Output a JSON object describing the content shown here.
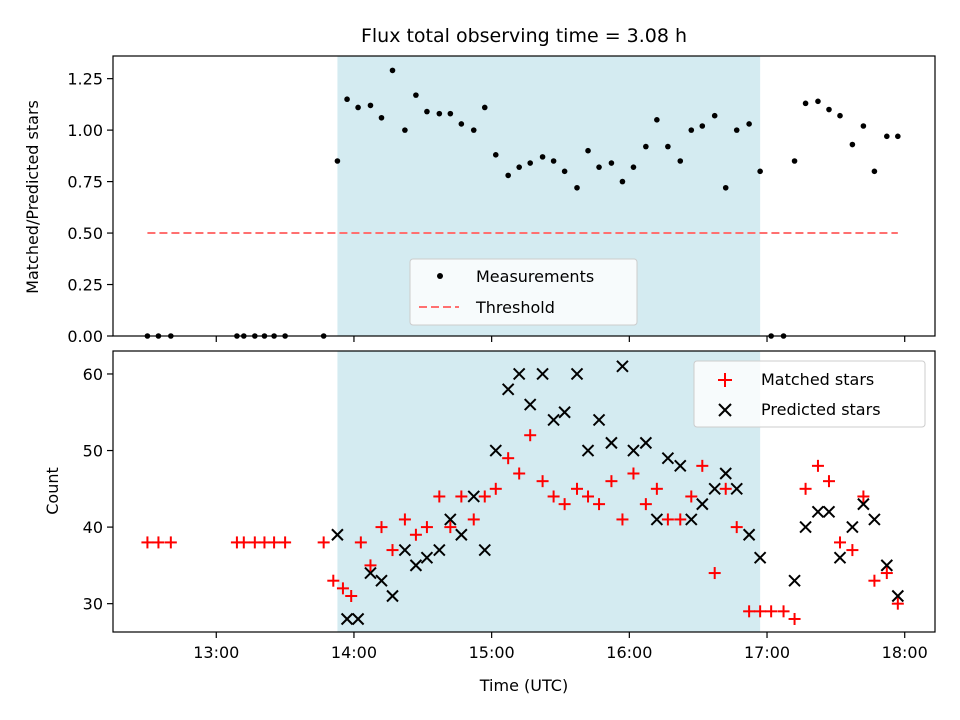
{
  "chart_data": [
    {
      "type": "scatter",
      "title": "Flux total observing time = 3.08 h",
      "ylabel": "Matched/Predicted stars",
      "xlabel": "",
      "x_unit": "hours UTC",
      "xlim": [
        12.25,
        18.22
      ],
      "ylim": [
        0,
        1.36
      ],
      "yticks": [
        0.0,
        0.25,
        0.5,
        0.75,
        1.0,
        1.25
      ],
      "ytick_labels": [
        "0.00",
        "0.25",
        "0.50",
        "0.75",
        "1.00",
        "1.25"
      ],
      "shaded_interval": [
        13.88,
        16.95
      ],
      "shade_color": "#d4ebf1",
      "legend_position": "lower center",
      "series": [
        {
          "name": "Measurements",
          "marker": "dot",
          "color": "#000000",
          "x": [
            12.5,
            12.58,
            12.67,
            13.15,
            13.2,
            13.28,
            13.35,
            13.42,
            13.5,
            13.78,
            13.88,
            13.95,
            14.03,
            14.12,
            14.2,
            14.28,
            14.37,
            14.45,
            14.53,
            14.62,
            14.7,
            14.78,
            14.87,
            14.95,
            15.03,
            15.12,
            15.2,
            15.28,
            15.37,
            15.45,
            15.53,
            15.62,
            15.7,
            15.78,
            15.87,
            15.95,
            16.03,
            16.12,
            16.2,
            16.28,
            16.37,
            16.45,
            16.53,
            16.62,
            16.7,
            16.78,
            16.87,
            16.95,
            17.03,
            17.12,
            17.2,
            17.28,
            17.37,
            17.45,
            17.53,
            17.62,
            17.7,
            17.78,
            17.87,
            17.95
          ],
          "y": [
            0,
            0,
            0,
            0,
            0,
            0,
            0,
            0,
            0,
            0,
            0.85,
            1.15,
            1.11,
            1.12,
            1.06,
            1.29,
            1.0,
            1.17,
            1.09,
            1.08,
            1.08,
            1.03,
            1.0,
            1.11,
            0.88,
            0.78,
            0.82,
            0.84,
            0.87,
            0.85,
            0.8,
            0.72,
            0.9,
            0.82,
            0.84,
            0.75,
            0.82,
            0.92,
            1.05,
            0.92,
            0.85,
            1.0,
            1.02,
            1.07,
            0.72,
            1.0,
            1.03,
            0.8,
            0,
            0,
            0.85,
            1.13,
            1.14,
            1.1,
            1.07,
            0.93,
            1.02,
            0.8,
            0.97,
            0.97
          ]
        },
        {
          "name": "Threshold",
          "style": "dashed",
          "color": "#ff7070",
          "x": [
            12.5,
            17.95
          ],
          "y": [
            0.5,
            0.5
          ]
        }
      ]
    },
    {
      "type": "scatter",
      "title": "",
      "ylabel": "Count",
      "xlabel": "Time (UTC)",
      "x_unit": "hours UTC",
      "xlim": [
        12.25,
        18.22
      ],
      "ylim": [
        26.3,
        63
      ],
      "yticks": [
        30,
        40,
        50,
        60
      ],
      "ytick_labels": [
        "30",
        "40",
        "50",
        "60"
      ],
      "xticks": [
        13,
        14,
        15,
        16,
        17,
        18
      ],
      "xtick_labels": [
        "13:00",
        "14:00",
        "15:00",
        "16:00",
        "17:00",
        "18:00"
      ],
      "shaded_interval": [
        13.88,
        16.95
      ],
      "shade_color": "#d4ebf1",
      "legend_position": "upper right",
      "series": [
        {
          "name": "Matched stars",
          "marker": "plus",
          "color": "#ff0000",
          "x": [
            12.5,
            12.58,
            12.67,
            13.15,
            13.2,
            13.28,
            13.35,
            13.42,
            13.5,
            13.78,
            13.85,
            13.92,
            13.98,
            14.05,
            14.12,
            14.2,
            14.28,
            14.37,
            14.45,
            14.53,
            14.62,
            14.7,
            14.78,
            14.87,
            14.95,
            15.03,
            15.12,
            15.2,
            15.28,
            15.37,
            15.45,
            15.53,
            15.62,
            15.7,
            15.78,
            15.87,
            15.95,
            16.03,
            16.12,
            16.2,
            16.28,
            16.37,
            16.45,
            16.53,
            16.62,
            16.7,
            16.78,
            16.87,
            16.95,
            17.03,
            17.12,
            17.2,
            17.28,
            17.37,
            17.45,
            17.53,
            17.62,
            17.7,
            17.78,
            17.87,
            17.95
          ],
          "y": [
            38,
            38,
            38,
            38,
            38,
            38,
            38,
            38,
            38,
            38,
            33,
            32,
            31,
            38,
            35,
            40,
            37,
            41,
            39,
            40,
            44,
            40,
            44,
            41,
            44,
            45,
            49,
            47,
            52,
            46,
            44,
            43,
            45,
            44,
            43,
            46,
            41,
            47,
            43,
            45,
            41,
            41,
            44,
            48,
            34,
            45,
            40,
            29,
            29,
            29,
            29,
            28,
            45,
            48,
            46,
            38,
            37,
            44,
            33,
            34,
            30
          ]
        },
        {
          "name": "Predicted stars",
          "marker": "x",
          "color": "#000000",
          "x": [
            13.88,
            13.95,
            14.03,
            14.12,
            14.2,
            14.28,
            14.37,
            14.45,
            14.53,
            14.62,
            14.7,
            14.78,
            14.87,
            14.95,
            15.03,
            15.12,
            15.2,
            15.28,
            15.37,
            15.45,
            15.53,
            15.62,
            15.7,
            15.78,
            15.87,
            15.95,
            16.03,
            16.12,
            16.2,
            16.28,
            16.37,
            16.45,
            16.53,
            16.62,
            16.7,
            16.78,
            16.87,
            16.95,
            17.2,
            17.28,
            17.37,
            17.45,
            17.53,
            17.62,
            17.7,
            17.78,
            17.87,
            17.95
          ],
          "y": [
            39,
            28,
            28,
            34,
            33,
            31,
            37,
            35,
            36,
            37,
            41,
            39,
            44,
            37,
            50,
            58,
            60,
            56,
            60,
            54,
            55,
            60,
            50,
            54,
            51,
            61,
            50,
            51,
            41,
            49,
            48,
            41,
            43,
            45,
            47,
            45,
            39,
            36,
            33,
            40,
            42,
            42,
            36,
            40,
            43,
            41,
            35,
            31
          ]
        }
      ]
    }
  ]
}
